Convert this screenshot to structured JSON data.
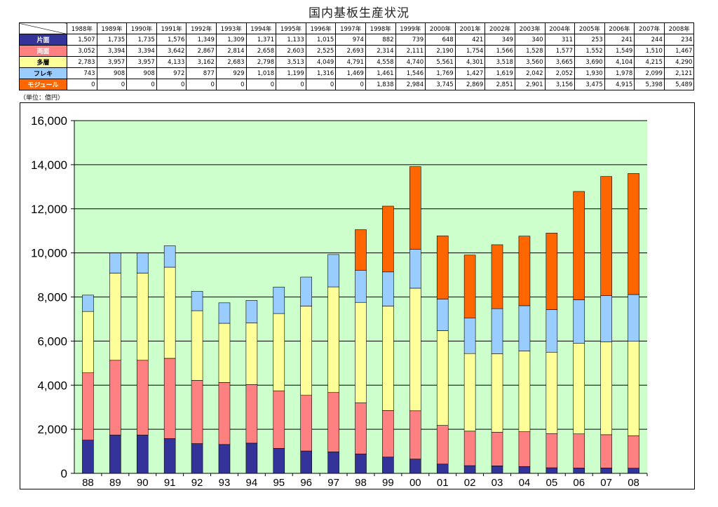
{
  "title": "国内基板生産状況",
  "unit_note": "（単位：億円）",
  "colors": {
    "single": "#333399",
    "double": "#FF8080",
    "multi": "#FFFF99",
    "flex": "#99CCFF",
    "module": "#FF6600",
    "plot_bg": "#CCFFCC"
  },
  "table": {
    "year_headers": [
      "1988年",
      "1989年",
      "1990年",
      "1991年",
      "1992年",
      "1993年",
      "1994年",
      "1995年",
      "1996年",
      "1997年",
      "1998年",
      "1999年",
      "2000年",
      "2001年",
      "2002年",
      "2003年",
      "2004年",
      "2005年",
      "2006年",
      "2007年",
      "2008年"
    ],
    "rows": [
      {
        "label": "片面",
        "color": "#333399",
        "text_color": "#ffffff",
        "values": [
          "1,507",
          "1,735",
          "1,735",
          "1,576",
          "1,349",
          "1,309",
          "1,371",
          "1,133",
          "1,015",
          "974",
          "882",
          "739",
          "648",
          "421",
          "349",
          "340",
          "311",
          "253",
          "241",
          "244",
          "234"
        ]
      },
      {
        "label": "両面",
        "color": "#FF8080",
        "text_color": "#ffffff",
        "values": [
          "3,052",
          "3,394",
          "3,394",
          "3,642",
          "2,867",
          "2,814",
          "2,658",
          "2,603",
          "2,525",
          "2,693",
          "2,314",
          "2,111",
          "2,190",
          "1,754",
          "1,566",
          "1,528",
          "1,577",
          "1,552",
          "1,549",
          "1,510",
          "1,467"
        ]
      },
      {
        "label": "多層",
        "color": "#FFFF99",
        "text_color": "#000000",
        "values": [
          "2,783",
          "3,957",
          "3,957",
          "4,133",
          "3,162",
          "2,683",
          "2,798",
          "3,513",
          "4,049",
          "4,791",
          "4,558",
          "4,740",
          "5,561",
          "4,301",
          "3,518",
          "3,560",
          "3,665",
          "3,690",
          "4,104",
          "4,215",
          "4,290"
        ]
      },
      {
        "label": "フレキ",
        "color": "#99CCFF",
        "text_color": "#000000",
        "values": [
          "743",
          "908",
          "908",
          "972",
          "877",
          "929",
          "1,018",
          "1,199",
          "1,316",
          "1,469",
          "1,461",
          "1,546",
          "1,769",
          "1,427",
          "1,619",
          "2,042",
          "2,052",
          "1,930",
          "1,978",
          "2,099",
          "2,121"
        ]
      },
      {
        "label": "モジュール",
        "color": "#FF6600",
        "text_color": "#ffffff",
        "values": [
          "0",
          "0",
          "0",
          "0",
          "0",
          "0",
          "0",
          "0",
          "0",
          "0",
          "1,838",
          "2,984",
          "3,745",
          "2,869",
          "2,851",
          "2,901",
          "3,156",
          "3,475",
          "4,915",
          "5,398",
          "5,489"
        ]
      }
    ]
  },
  "chart_data": {
    "type": "bar",
    "stacked": true,
    "title": "国内基板生産状況",
    "xlabel": "",
    "ylabel": "",
    "ylim": [
      0,
      16000
    ],
    "y_ticks": [
      0,
      2000,
      4000,
      6000,
      8000,
      10000,
      12000,
      14000,
      16000
    ],
    "y_tick_labels": [
      "0",
      "2,000",
      "4,000",
      "6,000",
      "8,000",
      "10,000",
      "12,000",
      "14,000",
      "16,000"
    ],
    "grid": true,
    "categories": [
      "88",
      "89",
      "90",
      "91",
      "92",
      "93",
      "94",
      "95",
      "96",
      "97",
      "98",
      "99",
      "00",
      "01",
      "02",
      "03",
      "04",
      "05",
      "06",
      "07",
      "08"
    ],
    "series": [
      {
        "name": "片面",
        "color": "#333399",
        "values": [
          1507,
          1735,
          1735,
          1576,
          1349,
          1309,
          1371,
          1133,
          1015,
          974,
          882,
          739,
          648,
          421,
          349,
          340,
          311,
          253,
          241,
          244,
          234
        ]
      },
      {
        "name": "両面",
        "color": "#FF8080",
        "values": [
          3052,
          3394,
          3394,
          3642,
          2867,
          2814,
          2658,
          2603,
          2525,
          2693,
          2314,
          2111,
          2190,
          1754,
          1566,
          1528,
          1577,
          1552,
          1549,
          1510,
          1467
        ]
      },
      {
        "name": "多層",
        "color": "#FFFF99",
        "values": [
          2783,
          3957,
          3957,
          4133,
          3162,
          2683,
          2798,
          3513,
          4049,
          4791,
          4558,
          4740,
          5561,
          4301,
          3518,
          3560,
          3665,
          3690,
          4104,
          4215,
          4290
        ]
      },
      {
        "name": "フレキ",
        "color": "#99CCFF",
        "values": [
          743,
          908,
          908,
          972,
          877,
          929,
          1018,
          1199,
          1316,
          1469,
          1461,
          1546,
          1769,
          1427,
          1619,
          2042,
          2052,
          1930,
          1978,
          2099,
          2121
        ]
      },
      {
        "name": "モジュール",
        "color": "#FF6600",
        "values": [
          0,
          0,
          0,
          0,
          0,
          0,
          0,
          0,
          0,
          0,
          1838,
          2984,
          3745,
          2869,
          2851,
          2901,
          3156,
          3475,
          4915,
          5398,
          5489
        ]
      }
    ]
  }
}
